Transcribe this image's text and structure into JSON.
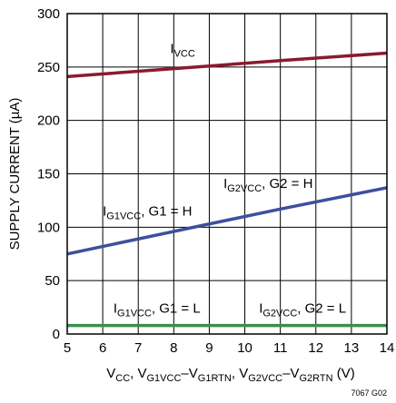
{
  "chart_data": {
    "type": "line",
    "xlabel": {
      "parts": [
        {
          "t": "V",
          "sub": "CC"
        },
        {
          "t": ", V",
          "sub": "G1VCC"
        },
        {
          "t": "–V",
          "sub": "G1RTN"
        },
        {
          "t": ", V",
          "sub": "G2VCC"
        },
        {
          "t": "–V",
          "sub": "G2RTN"
        },
        {
          "t": " (V)"
        }
      ]
    },
    "ylabel": "SUPPLY CURRENT (µA)",
    "xlim": [
      5,
      14
    ],
    "ylim": [
      0,
      300
    ],
    "x_ticks": [
      5,
      6,
      7,
      8,
      9,
      10,
      11,
      12,
      13,
      14
    ],
    "y_ticks": [
      0,
      50,
      100,
      150,
      200,
      250,
      300
    ],
    "grid": true,
    "note": "7067 G02",
    "series": [
      {
        "color": "#8b1a2e",
        "x": [
          5,
          7,
          9,
          11,
          14
        ],
        "y": [
          241,
          246,
          251,
          256,
          263
        ]
      },
      {
        "color": "#3d4f9e",
        "x": [
          5,
          8,
          11,
          14
        ],
        "y": [
          75,
          96,
          117,
          137
        ]
      },
      {
        "color": "#3a8f4a",
        "x": [
          5,
          14
        ],
        "y": [
          8,
          8
        ]
      }
    ],
    "annotations": [
      {
        "id": "ivcc",
        "x": 7.9,
        "y": 263,
        "parts": [
          {
            "t": "I",
            "sub": "VCC"
          }
        ]
      },
      {
        "id": "ig1vcc-h",
        "x": 6.0,
        "y": 111,
        "parts": [
          {
            "t": "I",
            "sub": "G1VCC"
          },
          {
            "t": ", G1 = H"
          }
        ]
      },
      {
        "id": "ig2vcc-h",
        "x": 9.4,
        "y": 137,
        "parts": [
          {
            "t": "I",
            "sub": "G2VCC"
          },
          {
            "t": ", G2 = H"
          }
        ]
      },
      {
        "id": "ig1vcc-l",
        "x": 6.3,
        "y": 20,
        "parts": [
          {
            "t": "I",
            "sub": "G1VCC"
          },
          {
            "t": ", G1 = L"
          }
        ]
      },
      {
        "id": "ig2vcc-l",
        "x": 10.4,
        "y": 20,
        "parts": [
          {
            "t": "I",
            "sub": "G2VCC"
          },
          {
            "t": ", G2 = L"
          }
        ]
      }
    ]
  }
}
